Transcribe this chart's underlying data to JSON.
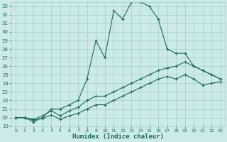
{
  "title": "",
  "xlabel": "Humidex (Indice chaleur)",
  "xlim": [
    -0.5,
    23.5
  ],
  "ylim": [
    19,
    33.5
  ],
  "yticks": [
    19,
    20,
    21,
    22,
    23,
    24,
    25,
    26,
    27,
    28,
    29,
    30,
    31,
    32,
    33
  ],
  "xticks": [
    0,
    1,
    2,
    3,
    4,
    5,
    6,
    7,
    8,
    9,
    10,
    11,
    12,
    13,
    14,
    15,
    16,
    17,
    18,
    19,
    20,
    21,
    22,
    23
  ],
  "bg_color": "#cceae7",
  "grid_color": "#9ecfca",
  "line_color": "#1a6b5a",
  "line1": [
    20.0,
    20.0,
    19.5,
    20.0,
    21.0,
    21.0,
    21.5,
    22.0,
    24.5,
    29.0,
    27.0,
    32.5,
    31.5,
    33.5,
    33.5,
    33.0,
    31.5,
    28.0,
    27.5,
    27.5,
    26.0,
    25.5,
    25.0,
    24.5
  ],
  "line2": [
    20.0,
    20.0,
    19.8,
    20.2,
    20.8,
    20.2,
    20.8,
    21.2,
    22.0,
    22.5,
    22.5,
    23.0,
    23.5,
    24.0,
    24.5,
    25.0,
    25.5,
    25.8,
    26.0,
    26.5,
    26.0,
    25.5,
    25.0,
    24.5
  ],
  "line3": [
    20.0,
    20.0,
    19.7,
    19.9,
    20.3,
    19.8,
    20.2,
    20.5,
    21.0,
    21.5,
    21.5,
    22.0,
    22.5,
    23.0,
    23.5,
    24.0,
    24.5,
    24.8,
    24.5,
    25.0,
    24.5,
    23.8,
    24.0,
    24.2
  ]
}
